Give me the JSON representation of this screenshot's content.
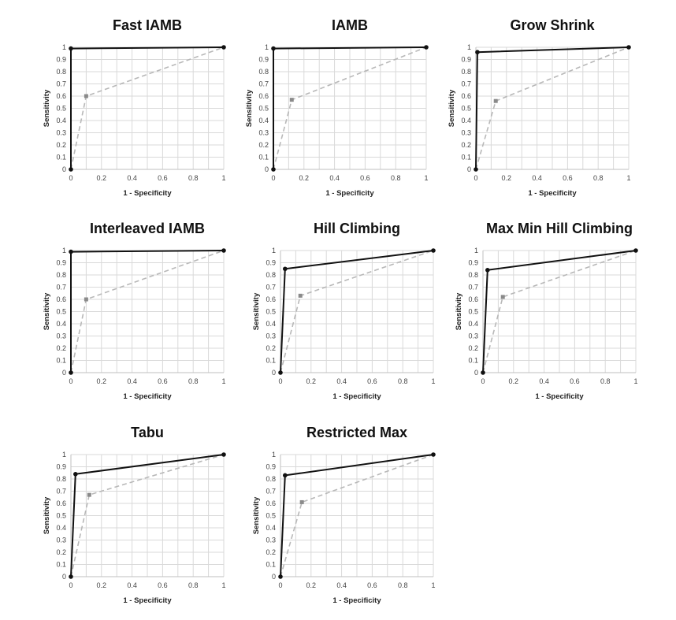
{
  "chart_data": [
    {
      "type": "line",
      "title": "Fast IAMB",
      "xlabel": "1 - Specificity",
      "ylabel": "Sensitivity",
      "xlim": [
        0,
        1
      ],
      "ylim": [
        0,
        1
      ],
      "grid": true,
      "x_ticks": [
        "0",
        "0.2",
        "0.4",
        "0.6",
        "0.8",
        "1"
      ],
      "y_ticks": [
        "0",
        "0.1",
        "0.2",
        "0.3",
        "0.4",
        "0.5",
        "0.6",
        "0.7",
        "0.8",
        "0.9",
        "1"
      ],
      "series": [
        {
          "style": "solid",
          "color": "#111111",
          "marker": "circle",
          "points": [
            [
              0,
              0
            ],
            [
              0,
              0.99
            ],
            [
              1,
              1
            ]
          ]
        },
        {
          "style": "dashed",
          "color": "#b8b8b8",
          "marker": "square",
          "points": [
            [
              0,
              0
            ],
            [
              0.1,
              0.6
            ],
            [
              1,
              1
            ]
          ]
        }
      ]
    },
    {
      "type": "line",
      "title": "IAMB",
      "xlabel": "1 - Specificity",
      "ylabel": "Sensitivity",
      "xlim": [
        0,
        1
      ],
      "ylim": [
        0,
        1
      ],
      "grid": true,
      "x_ticks": [
        "0",
        "0.2",
        "0.4",
        "0.6",
        "0.8",
        "1"
      ],
      "y_ticks": [
        "0",
        "0.1",
        "0.2",
        "0.3",
        "0.4",
        "0.5",
        "0.6",
        "0.7",
        "0.8",
        "0.9",
        "1"
      ],
      "series": [
        {
          "style": "solid",
          "color": "#111111",
          "marker": "circle",
          "points": [
            [
              0,
              0
            ],
            [
              0,
              0.99
            ],
            [
              1,
              1
            ]
          ]
        },
        {
          "style": "dashed",
          "color": "#b8b8b8",
          "marker": "square",
          "points": [
            [
              0,
              0
            ],
            [
              0.12,
              0.57
            ],
            [
              1,
              1
            ]
          ]
        }
      ]
    },
    {
      "type": "line",
      "title": "Grow Shrink",
      "xlabel": "1 - Specificity",
      "ylabel": "Sensitivity",
      "xlim": [
        0,
        1
      ],
      "ylim": [
        0,
        1
      ],
      "grid": true,
      "x_ticks": [
        "0",
        "0.2",
        "0.4",
        "0.6",
        "0.8",
        "1"
      ],
      "y_ticks": [
        "0",
        "0.1",
        "0.2",
        "0.3",
        "0.4",
        "0.5",
        "0.6",
        "0.7",
        "0.8",
        "0.9",
        "1"
      ],
      "series": [
        {
          "style": "solid",
          "color": "#111111",
          "marker": "circle",
          "points": [
            [
              0,
              0
            ],
            [
              0.01,
              0.96
            ],
            [
              1,
              1
            ]
          ]
        },
        {
          "style": "dashed",
          "color": "#b8b8b8",
          "marker": "square",
          "points": [
            [
              0,
              0
            ],
            [
              0.13,
              0.56
            ],
            [
              1,
              1
            ]
          ]
        }
      ]
    },
    {
      "type": "line",
      "title": "Interleaved IAMB",
      "xlabel": "1 - Specificity",
      "ylabel": "Sensitivity",
      "xlim": [
        0,
        1
      ],
      "ylim": [
        0,
        1
      ],
      "grid": true,
      "x_ticks": [
        "0",
        "0.2",
        "0.4",
        "0.6",
        "0.8",
        "1"
      ],
      "y_ticks": [
        "0",
        "0.1",
        "0.2",
        "0.3",
        "0.4",
        "0.5",
        "0.6",
        "0.7",
        "0.8",
        "0.9",
        "1"
      ],
      "series": [
        {
          "style": "solid",
          "color": "#111111",
          "marker": "circle",
          "points": [
            [
              0,
              0
            ],
            [
              0,
              0.99
            ],
            [
              1,
              1
            ]
          ]
        },
        {
          "style": "dashed",
          "color": "#b8b8b8",
          "marker": "square",
          "points": [
            [
              0,
              0
            ],
            [
              0.1,
              0.6
            ],
            [
              1,
              1
            ]
          ]
        }
      ]
    },
    {
      "type": "line",
      "title": "Hill Climbing",
      "xlabel": "1 - Specificity",
      "ylabel": "Sensitivity",
      "xlim": [
        0,
        1
      ],
      "ylim": [
        0,
        1
      ],
      "grid": true,
      "x_ticks": [
        "0",
        "0.2",
        "0.4",
        "0.6",
        "0.8",
        "1"
      ],
      "y_ticks": [
        "0",
        "0.1",
        "0.2",
        "0.3",
        "0.4",
        "0.5",
        "0.6",
        "0.7",
        "0.8",
        "0.9",
        "1"
      ],
      "series": [
        {
          "style": "solid",
          "color": "#111111",
          "marker": "circle",
          "points": [
            [
              0,
              0
            ],
            [
              0.03,
              0.85
            ],
            [
              1,
              1
            ]
          ]
        },
        {
          "style": "dashed",
          "color": "#b8b8b8",
          "marker": "square",
          "points": [
            [
              0,
              0
            ],
            [
              0.13,
              0.63
            ],
            [
              1,
              1
            ]
          ]
        }
      ]
    },
    {
      "type": "line",
      "title": "Max Min Hill Climbing",
      "xlabel": "1 - Specificity",
      "ylabel": "Sensitivity",
      "xlim": [
        0,
        1
      ],
      "ylim": [
        0,
        1
      ],
      "grid": true,
      "x_ticks": [
        "0",
        "0.2",
        "0.4",
        "0.6",
        "0.8",
        "1"
      ],
      "y_ticks": [
        "0",
        "0.1",
        "0.2",
        "0.3",
        "0.4",
        "0.5",
        "0.6",
        "0.7",
        "0.8",
        "0.9",
        "1"
      ],
      "series": [
        {
          "style": "solid",
          "color": "#111111",
          "marker": "circle",
          "points": [
            [
              0,
              0
            ],
            [
              0.03,
              0.84
            ],
            [
              1,
              1
            ]
          ]
        },
        {
          "style": "dashed",
          "color": "#b8b8b8",
          "marker": "square",
          "points": [
            [
              0,
              0
            ],
            [
              0.13,
              0.62
            ],
            [
              1,
              1
            ]
          ]
        }
      ]
    },
    {
      "type": "line",
      "title": "Tabu",
      "xlabel": "1 - Specificity",
      "ylabel": "Sensitivity",
      "xlim": [
        0,
        1
      ],
      "ylim": [
        0,
        1
      ],
      "grid": true,
      "x_ticks": [
        "0",
        "0.2",
        "0.4",
        "0.6",
        "0.8",
        "1"
      ],
      "y_ticks": [
        "0",
        "0.1",
        "0.2",
        "0.3",
        "0.4",
        "0.5",
        "0.6",
        "0.7",
        "0.8",
        "0.9",
        "1"
      ],
      "series": [
        {
          "style": "solid",
          "color": "#111111",
          "marker": "circle",
          "points": [
            [
              0,
              0
            ],
            [
              0.03,
              0.84
            ],
            [
              1,
              1
            ]
          ]
        },
        {
          "style": "dashed",
          "color": "#b8b8b8",
          "marker": "square",
          "points": [
            [
              0,
              0
            ],
            [
              0.12,
              0.67
            ],
            [
              1,
              1
            ]
          ]
        }
      ]
    },
    {
      "type": "line",
      "title": "Restricted Max",
      "xlabel": "1 - Specificity",
      "ylabel": "Sensitivity",
      "xlim": [
        0,
        1
      ],
      "ylim": [
        0,
        1
      ],
      "grid": true,
      "x_ticks": [
        "0",
        "0.2",
        "0.4",
        "0.6",
        "0.8",
        "1"
      ],
      "y_ticks": [
        "0",
        "0.1",
        "0.2",
        "0.3",
        "0.4",
        "0.5",
        "0.6",
        "0.7",
        "0.8",
        "0.9",
        "1"
      ],
      "series": [
        {
          "style": "solid",
          "color": "#111111",
          "marker": "circle",
          "points": [
            [
              0,
              0
            ],
            [
              0.03,
              0.83
            ],
            [
              1,
              1
            ]
          ]
        },
        {
          "style": "dashed",
          "color": "#b8b8b8",
          "marker": "square",
          "points": [
            [
              0,
              0
            ],
            [
              0.14,
              0.61
            ],
            [
              1,
              1
            ]
          ]
        }
      ]
    }
  ]
}
